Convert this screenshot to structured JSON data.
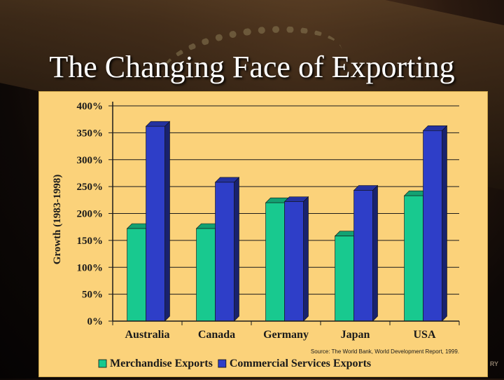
{
  "slide": {
    "title": "The Changing Face of Exporting",
    "watermark": "RY"
  },
  "chart_data": {
    "type": "bar",
    "title": "",
    "ylabel": "Growth (1983-1998)",
    "xlabel": "",
    "ylim": [
      0,
      400
    ],
    "yticks": [
      0,
      50,
      100,
      150,
      200,
      250,
      300,
      350,
      400
    ],
    "ytick_labels": [
      "0%",
      "50%",
      "100%",
      "150%",
      "200%",
      "250%",
      "300%",
      "350%",
      "400%"
    ],
    "categories": [
      "Australia",
      "Canada",
      "Germany",
      "Japan",
      "USA"
    ],
    "series": [
      {
        "name": "Merchandise Exports",
        "color": "#18c98f",
        "values": [
          172,
          172,
          220,
          158,
          233
        ]
      },
      {
        "name": "Commercial Services Exports",
        "color": "#2e3ec8",
        "values": [
          362,
          258,
          222,
          243,
          354
        ]
      }
    ],
    "grid": true,
    "legend_position": "bottom",
    "source": "Source: The World Bank, World Development Report, 1999."
  }
}
